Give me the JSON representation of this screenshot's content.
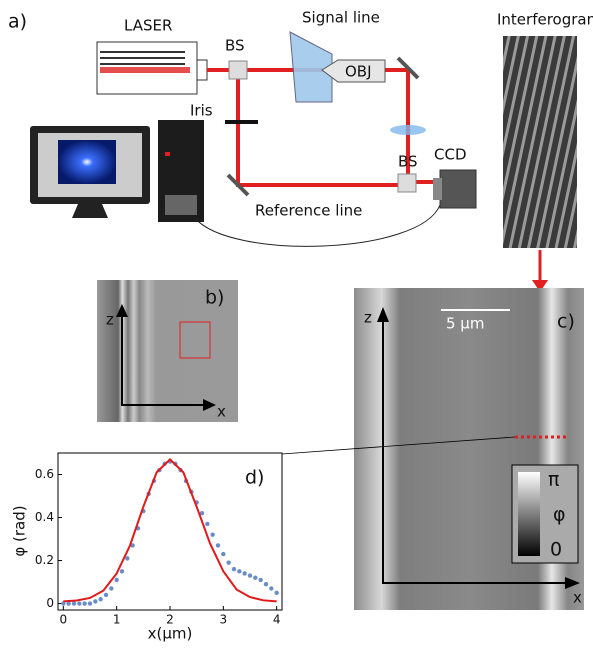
{
  "panel_a": {
    "label": "a)",
    "laser": "LASER",
    "bs_top": "BS",
    "signal_line": "Signal line",
    "objective": "OBJ",
    "interferogram": "Interferogram",
    "iris": "Iris",
    "bs_bottom": "BS",
    "ccd": "CCD",
    "reference_line": "Reference line"
  },
  "panel_b": {
    "label": "b)",
    "z_axis": "z",
    "x_axis": "x"
  },
  "panel_c": {
    "label": "c)",
    "z_axis": "z",
    "x_axis": "x",
    "scale_bar": "5 µm",
    "colorbar_top": "π",
    "colorbar_title": "φ",
    "colorbar_bottom": "0"
  },
  "chart_data": {
    "type": "line",
    "panel_label": "d)",
    "xlabel": "x(µm)",
    "ylabel": "φ (rad)",
    "xlim": [
      -0.1,
      4.1
    ],
    "ylim": [
      -0.03,
      0.7
    ],
    "xticks": [
      0,
      1,
      2,
      3,
      4
    ],
    "yticks": [
      0,
      0.2,
      0.4,
      0.6
    ],
    "series": [
      {
        "mode": "markers",
        "color": "#6a8cc7",
        "x": [
          0,
          0.1,
          0.2,
          0.3,
          0.4,
          0.5,
          0.6,
          0.7,
          0.8,
          0.9,
          1.0,
          1.1,
          1.2,
          1.3,
          1.4,
          1.5,
          1.6,
          1.7,
          1.8,
          1.9,
          2.0,
          2.1,
          2.2,
          2.3,
          2.4,
          2.5,
          2.6,
          2.7,
          2.8,
          2.9,
          3.0,
          3.1,
          3.2,
          3.3,
          3.4,
          3.5,
          3.6,
          3.7,
          3.8,
          3.9,
          4.0
        ],
        "values": [
          0,
          0,
          0,
          0,
          0,
          0,
          0.01,
          0.02,
          0.04,
          0.07,
          0.11,
          0.15,
          0.21,
          0.27,
          0.35,
          0.43,
          0.51,
          0.57,
          0.62,
          0.65,
          0.66,
          0.65,
          0.62,
          0.57,
          0.52,
          0.47,
          0.42,
          0.37,
          0.32,
          0.27,
          0.23,
          0.19,
          0.16,
          0.15,
          0.14,
          0.13,
          0.12,
          0.11,
          0.09,
          0.07,
          0.05
        ]
      },
      {
        "mode": "line",
        "color": "#e01a1a",
        "x": [
          0,
          0.25,
          0.5,
          0.75,
          1.0,
          1.25,
          1.5,
          1.75,
          2.0,
          2.25,
          2.5,
          2.75,
          3.0,
          3.25,
          3.5,
          3.75,
          4.0
        ],
        "values": [
          0.01,
          0.014,
          0.026,
          0.06,
          0.14,
          0.27,
          0.45,
          0.61,
          0.67,
          0.61,
          0.45,
          0.28,
          0.15,
          0.065,
          0.03,
          0.015,
          0.01
        ]
      }
    ]
  }
}
